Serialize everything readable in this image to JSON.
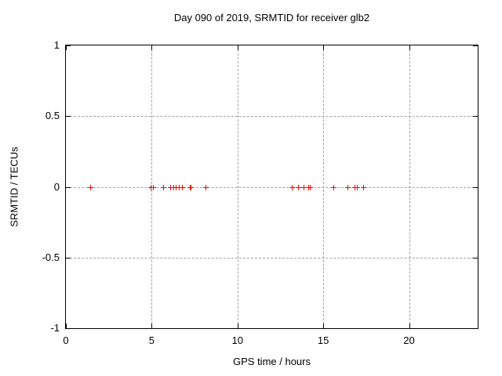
{
  "chart_data": {
    "type": "scatter",
    "title": "Day 090 of 2019, SRMTID for receiver glb2",
    "xlabel": "GPS time / hours",
    "ylabel": "SRMTID / TECUs",
    "xlim": [
      0,
      24
    ],
    "ylim": [
      -1,
      1
    ],
    "xticks": [
      0,
      5,
      10,
      15,
      20
    ],
    "xtick_labels": [
      "0",
      "5",
      "10",
      "15",
      "20"
    ],
    "yticks": [
      -1,
      -0.5,
      0,
      0.5,
      1
    ],
    "ytick_labels": [
      "-1",
      "-0.5",
      "0",
      "0.5",
      "1"
    ],
    "grid": true,
    "legend": "none",
    "marker": "plus",
    "marker_color": "#ff0000",
    "grid_color": "#a0a0a0",
    "border_color": "#000000",
    "series": [
      {
        "name": "SRMTID",
        "x": [
          1.42,
          4.92,
          5.09,
          5.65,
          6.06,
          6.25,
          6.42,
          6.6,
          6.78,
          7.2,
          7.26,
          8.12,
          13.15,
          13.53,
          13.84,
          14.13,
          14.22,
          15.59,
          16.43,
          16.81,
          16.95,
          17.34
        ],
        "y": [
          0,
          0,
          0,
          0,
          0,
          0,
          0,
          0,
          0,
          0,
          0,
          0,
          0,
          0,
          0,
          0,
          0,
          0,
          0,
          0,
          0,
          0
        ]
      }
    ]
  }
}
